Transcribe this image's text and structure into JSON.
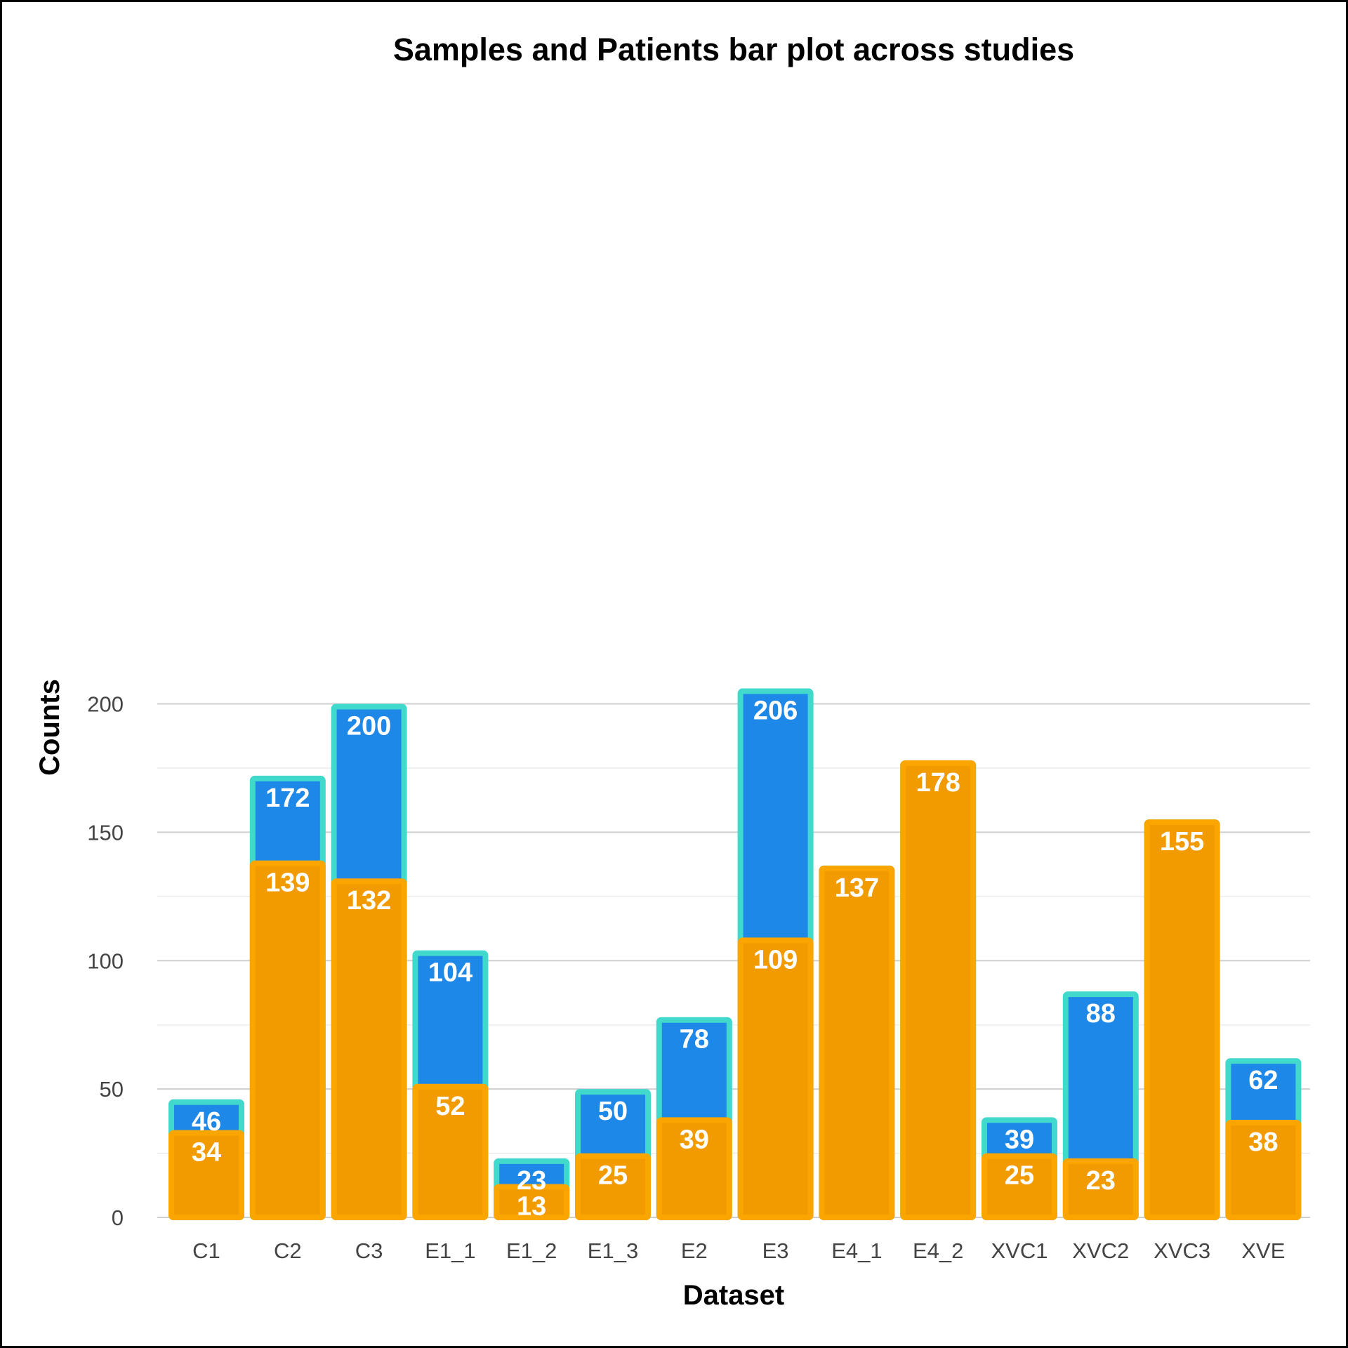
{
  "chart_data": {
    "type": "bar",
    "title": "Samples and Patients bar plot across studies",
    "xlabel": "Dataset",
    "ylabel": "Counts",
    "ylim": [
      0,
      220
    ],
    "yticks": [
      0,
      50,
      100,
      150,
      200
    ],
    "grid": true,
    "categories": [
      "C1",
      "C2",
      "C3",
      "E1_1",
      "E1_2",
      "E1_3",
      "E2",
      "E3",
      "E4_1",
      "E4_2",
      "XVC1",
      "XVC2",
      "XVC3",
      "XVE"
    ],
    "series": [
      {
        "values": [
          46,
          172,
          200,
          104,
          23,
          50,
          78,
          206,
          137,
          178,
          39,
          88,
          155,
          62
        ],
        "fill": "#1e88e8",
        "stroke": "#40d9cc"
      },
      {
        "values": [
          34,
          139,
          132,
          52,
          13,
          25,
          39,
          109,
          137,
          178,
          25,
          23,
          155,
          38
        ],
        "fill": "#f29b00",
        "stroke": "#fba600"
      }
    ]
  }
}
